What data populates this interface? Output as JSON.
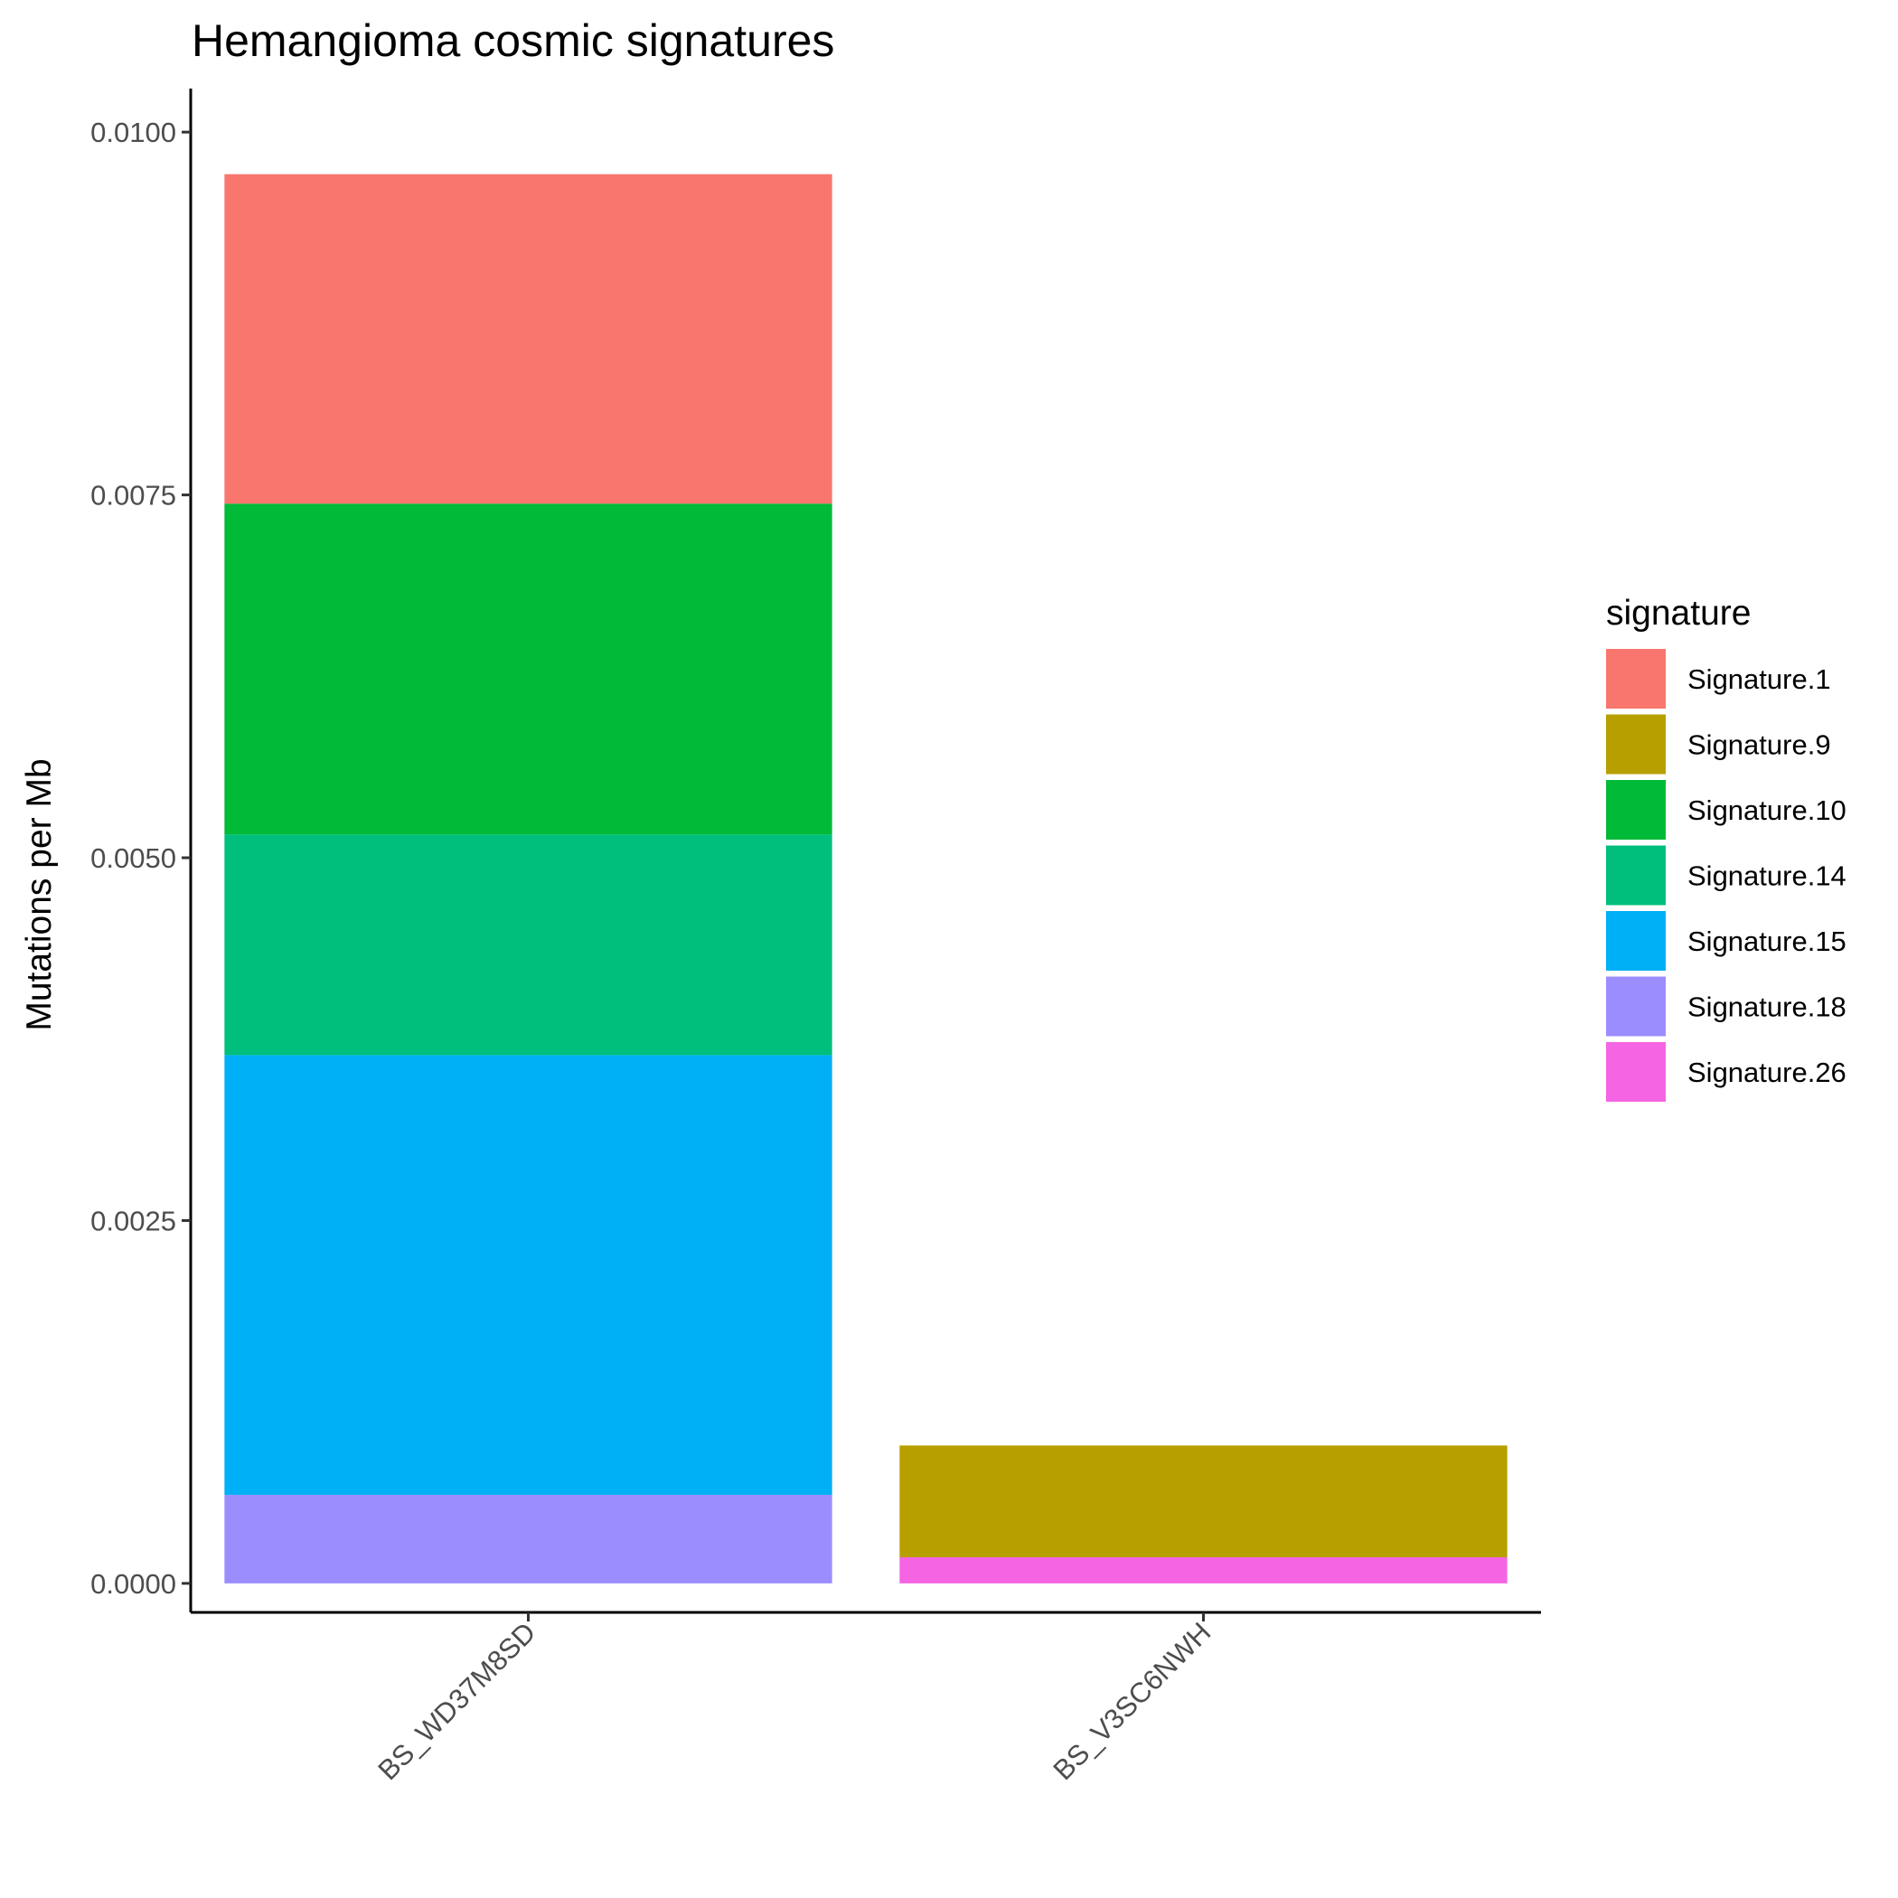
{
  "chart_data": {
    "type": "bar",
    "stacked": true,
    "title": "Hemangioma cosmic signatures",
    "xlabel": "",
    "ylabel": "Mutations per Mb",
    "ylim": [
      -0.0002,
      0.0103
    ],
    "y_ticks": [
      "0.0000",
      "0.0025",
      "0.0050",
      "0.0075",
      "0.0100"
    ],
    "y_tick_values": [
      0,
      0.0025,
      0.005,
      0.0075,
      0.01
    ],
    "categories": [
      "BS_WD37M8SD",
      "BS_V3SC6NWH"
    ],
    "grid": false,
    "legend": {
      "title": "signature",
      "position": "right"
    },
    "series": [
      {
        "name": "Signature.1",
        "color": "#F8766D",
        "values": [
          0.00227,
          0
        ]
      },
      {
        "name": "Signature.9",
        "color": "#B79F00",
        "values": [
          0,
          0.00077
        ]
      },
      {
        "name": "Signature.10",
        "color": "#00BA38",
        "values": [
          0.00228,
          0
        ]
      },
      {
        "name": "Signature.14",
        "color": "#00BF7D",
        "values": [
          0.00152,
          0
        ]
      },
      {
        "name": "Signature.15",
        "color": "#00B0F6",
        "values": [
          0.00303,
          0
        ]
      },
      {
        "name": "Signature.18",
        "color": "#9C8DFF",
        "values": [
          0.00061,
          0
        ]
      },
      {
        "name": "Signature.26",
        "color": "#F564E3",
        "values": [
          0,
          0.00018
        ]
      }
    ],
    "stack_order_bottom_to_top": [
      "Signature.26",
      "Signature.18",
      "Signature.15",
      "Signature.14",
      "Signature.10",
      "Signature.9",
      "Signature.1"
    ]
  }
}
